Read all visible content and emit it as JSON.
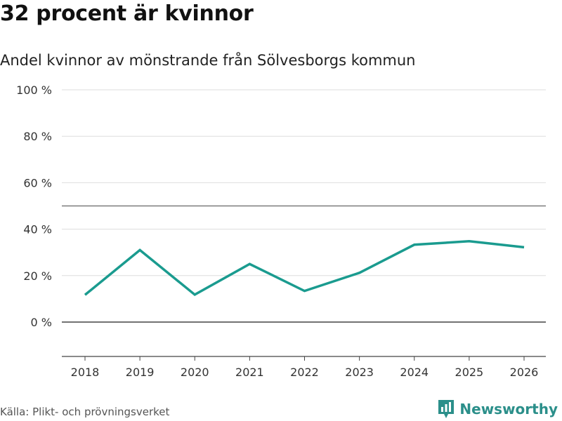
{
  "header": {
    "title": "32 procent är kvinnor",
    "subtitle": "Andel kvinnor av mönstrande från Sölvesborgs kommun"
  },
  "footer": {
    "source": "Källa: Plikt- och prövningsverket",
    "brand": "Newsworthy",
    "brand_icon": "newsworthy-logo-icon"
  },
  "colors": {
    "line": "#1a9b8f",
    "grid": "#dddddd",
    "zero_line": "#444444",
    "ref_line": "#666666",
    "brand": "#2b8f8a"
  },
  "chart_data": {
    "type": "line",
    "title": "32 procent är kvinnor",
    "subtitle": "Andel kvinnor av mönstrande från Sölvesborgs kommun",
    "xlabel": "",
    "ylabel": "",
    "x": [
      "2018",
      "2019",
      "2020",
      "2021",
      "2022",
      "2023",
      "2024",
      "2025",
      "2026"
    ],
    "series": [
      {
        "name": "Andel kvinnor",
        "values": [
          11.7,
          31.0,
          11.8,
          25.0,
          13.4,
          21.2,
          33.3,
          34.8,
          32.2
        ]
      }
    ],
    "ylim": [
      -15,
      100
    ],
    "yticks": [
      0,
      20,
      40,
      60,
      80,
      100
    ],
    "ytick_labels": [
      "0 %",
      "20 %",
      "40 %",
      "60 %",
      "80 %",
      "100 %"
    ],
    "reference_line": 50,
    "grid": true,
    "legend": "none"
  }
}
